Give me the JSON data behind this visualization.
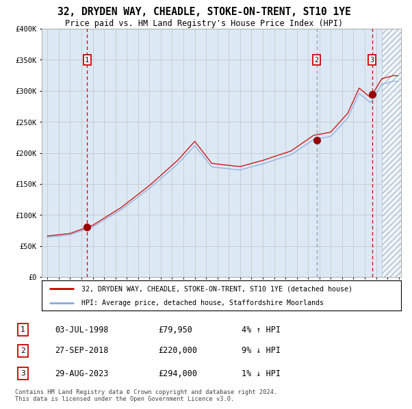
{
  "title": "32, DRYDEN WAY, CHEADLE, STOKE-ON-TRENT, ST10 1YE",
  "subtitle": "Price paid vs. HM Land Registry's House Price Index (HPI)",
  "legend_line1": "32, DRYDEN WAY, CHEADLE, STOKE-ON-TRENT, ST10 1YE (detached house)",
  "legend_line2": "HPI: Average price, detached house, Staffordshire Moorlands",
  "footer1": "Contains HM Land Registry data © Crown copyright and database right 2024.",
  "footer2": "This data is licensed under the Open Government Licence v3.0.",
  "transactions": [
    {
      "num": 1,
      "date": "03-JUL-1998",
      "price": 79950,
      "pct": "4%",
      "dir": "↑"
    },
    {
      "num": 2,
      "date": "27-SEP-2018",
      "price": 220000,
      "pct": "9%",
      "dir": "↓"
    },
    {
      "num": 3,
      "date": "29-AUG-2023",
      "price": 294000,
      "pct": "1%",
      "dir": "↓"
    }
  ],
  "vline1_x": 1998.5,
  "vline2_x": 2018.75,
  "vline3_x": 2023.65,
  "dot1_x": 1998.5,
  "dot1_y": 79950,
  "dot2_x": 2018.75,
  "dot2_y": 220000,
  "dot3_x": 2023.65,
  "dot3_y": 294000,
  "ylim": [
    0,
    400000
  ],
  "xlim_start": 1994.5,
  "xlim_end": 2026.2,
  "bg_color": "#dce9f5",
  "red_line_color": "#cc0000",
  "blue_line_color": "#88aadd",
  "grid_color": "#cccccc",
  "vline_red_color": "#cc0000",
  "vline_blue_color": "#8899bb",
  "dot_color": "#990000",
  "hatch_start": 2024.5
}
